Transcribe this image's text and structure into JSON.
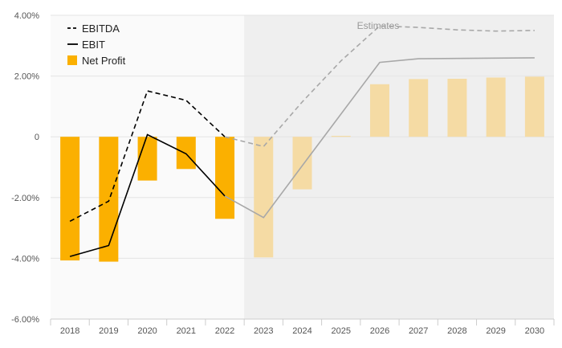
{
  "chart_data": {
    "type": "bar",
    "categories": [
      "2018",
      "2019",
      "2020",
      "2021",
      "2022",
      "2023",
      "2024",
      "2025",
      "2026",
      "2027",
      "2028",
      "2029",
      "2030"
    ],
    "ylim": [
      -6,
      4
    ],
    "y_ticks": [
      4,
      2,
      0,
      -2,
      -4,
      -6
    ],
    "y_tick_labels": [
      "4.00%",
      "2.00%",
      "0",
      "-2.00%",
      "-4.00%",
      "-6.00%"
    ],
    "estimates_label": "Estimates",
    "estimates_start": "2023",
    "legend_position": "top-left",
    "grid": true,
    "series": [
      {
        "name": "EBITDA",
        "kind": "line",
        "style": "dashed",
        "values": [
          -2.78,
          -2.12,
          1.51,
          1.2,
          0.0,
          -0.32,
          1.15,
          2.5,
          3.65,
          3.6,
          3.52,
          3.48,
          3.5
        ]
      },
      {
        "name": "EBIT",
        "kind": "line",
        "style": "solid",
        "values": [
          -3.94,
          -3.58,
          0.07,
          -0.56,
          -1.95,
          -2.66,
          -0.95,
          0.75,
          2.45,
          2.57,
          2.58,
          2.59,
          2.6
        ]
      },
      {
        "name": "Net Profit",
        "kind": "bar",
        "values": [
          -4.07,
          -4.11,
          -1.44,
          -1.06,
          -2.7,
          -3.97,
          -1.73,
          0.03,
          1.73,
          1.9,
          1.91,
          1.95,
          1.98
        ]
      }
    ],
    "colors": {
      "bar": "#fbb000",
      "bar_estimate": "#f5dba4",
      "line_actual": "#000000",
      "line_estimate": "#a8a8a8",
      "estimate_bg": "#efefef",
      "plot_bg": "#fafafa",
      "grid": "#e4e4e4"
    }
  }
}
